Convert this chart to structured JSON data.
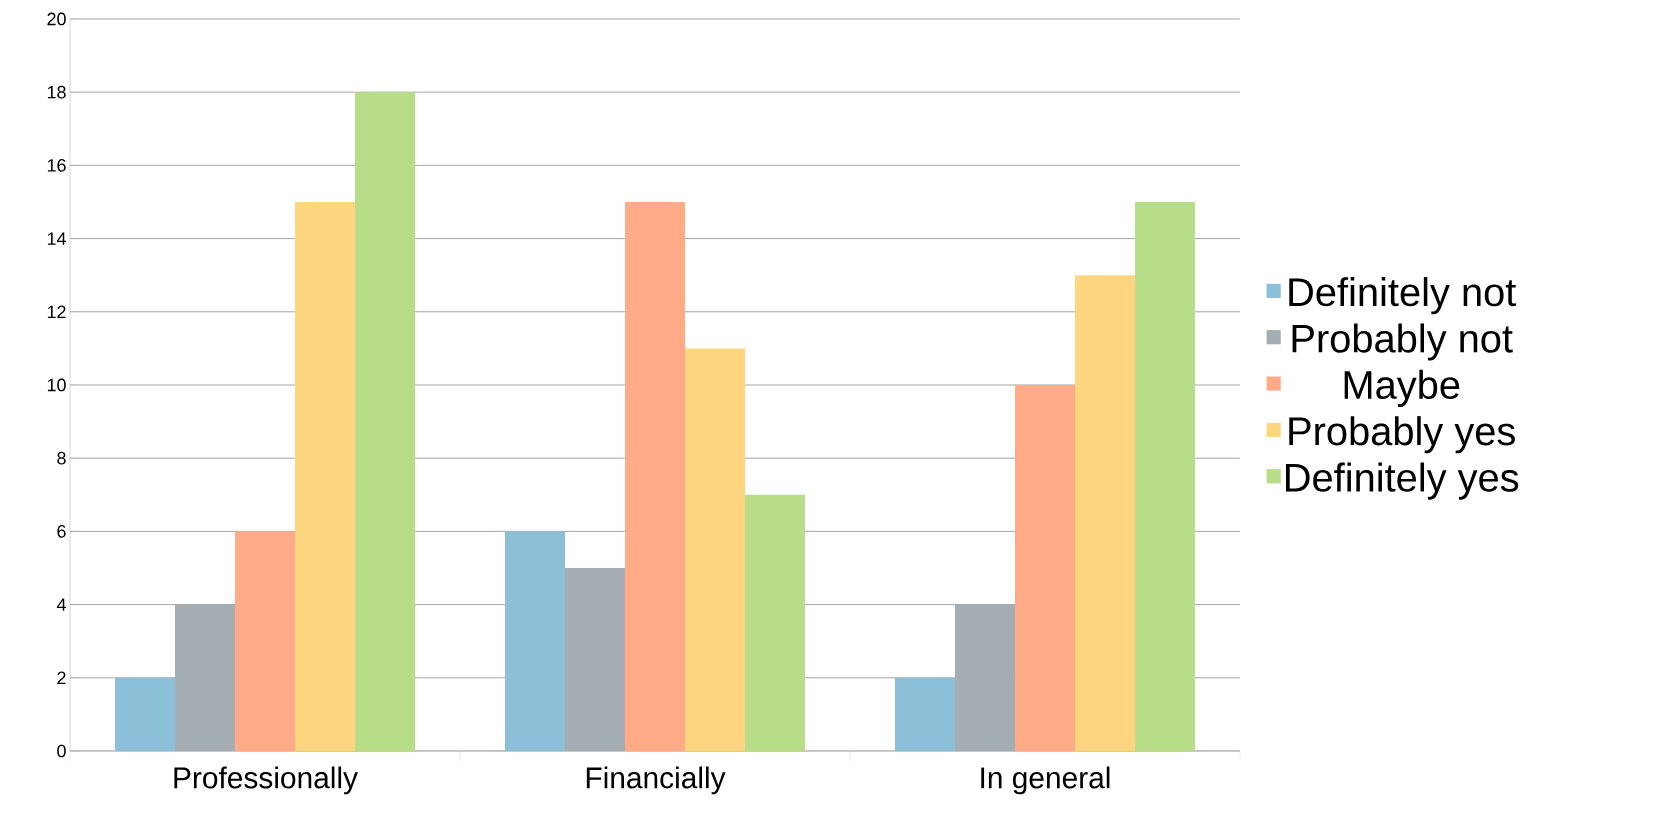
{
  "chart_data": {
    "type": "bar",
    "categories": [
      "Professionally",
      "Financially",
      "In general"
    ],
    "series": [
      {
        "name": "Definitely not",
        "color": "#8cc0d8",
        "values": [
          2,
          6,
          2
        ]
      },
      {
        "name": "Probably not",
        "color": "#a4adb2",
        "values": [
          4,
          5,
          4
        ]
      },
      {
        "name": "Maybe",
        "color": "#ffab88",
        "values": [
          6,
          15,
          10
        ]
      },
      {
        "name": "Probably yes",
        "color": "#ffd680",
        "values": [
          15,
          11,
          13
        ]
      },
      {
        "name": "Definitely yes",
        "color": "#b8dd88",
        "values": [
          18,
          7,
          15
        ]
      }
    ],
    "ylim": [
      0,
      20
    ],
    "yticks": [
      0,
      2,
      4,
      6,
      8,
      10,
      12,
      14,
      16,
      18,
      20
    ],
    "grid": "y",
    "legend": "right"
  }
}
